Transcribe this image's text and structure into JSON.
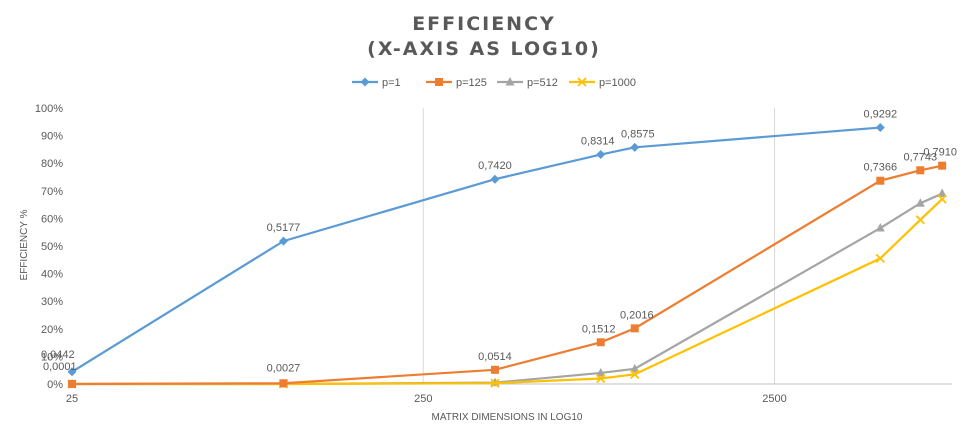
{
  "chart_data": {
    "type": "line",
    "title_line1": "EFFICIENCY",
    "title_line2": "(X-AXIS AS LOG10)",
    "xlabel": "MATRIX DIMENSIONS IN LOG10",
    "ylabel": "EFFICIENCY %",
    "x_scale": "log10",
    "xlim": [
      25,
      8000
    ],
    "ylim": [
      0,
      1
    ],
    "x_ticks": [
      25,
      250,
      2500
    ],
    "x_tick_labels": [
      "25",
      "250",
      "2500"
    ],
    "y_ticks": [
      0,
      0.1,
      0.2,
      0.3,
      0.4,
      0.5,
      0.6,
      0.7,
      0.8,
      0.9,
      1.0
    ],
    "y_tick_labels": [
      "0%",
      "10%",
      "20%",
      "30%",
      "40%",
      "50%",
      "60%",
      "70%",
      "80%",
      "90%",
      "100%"
    ],
    "grid": "vertical",
    "legend_position": "top",
    "series": [
      {
        "name": "p=1",
        "color": "#5B9BD5",
        "marker": "diamond",
        "x": [
          25,
          100,
          400,
          800,
          1000,
          5000,
          7500
        ],
        "y": [
          0.0442,
          0.5177,
          0.742,
          0.8314,
          0.8575,
          0.9292,
          null
        ],
        "labels": [
          "0,0442",
          "0,5177",
          "0,7420",
          "0,8314",
          "0,8575",
          "0,9292",
          ""
        ]
      },
      {
        "name": "p=125",
        "color": "#ED7D31",
        "marker": "square",
        "x": [
          25,
          100,
          400,
          800,
          1000,
          5000,
          6500,
          7500
        ],
        "y": [
          0.0001,
          0.0027,
          0.0514,
          0.1512,
          0.2016,
          0.7366,
          0.7743,
          0.791
        ],
        "labels": [
          "0,0001",
          "0,0027",
          "0,0514",
          "0,1512",
          "0,2016",
          "0,7366",
          "0,7743",
          "0,7910"
        ]
      },
      {
        "name": "p=512",
        "color": "#A5A5A5",
        "marker": "triangle",
        "x": [
          25,
          100,
          400,
          800,
          1000,
          5000,
          6500,
          7500
        ],
        "y": [
          0.0001,
          0.0001,
          0.005,
          0.04,
          0.055,
          0.565,
          0.655,
          0.69
        ],
        "labels": []
      },
      {
        "name": "p=1000",
        "color": "#FFC000",
        "marker": "x",
        "x": [
          25,
          100,
          400,
          800,
          1000,
          5000,
          6500,
          7500
        ],
        "y": [
          0.0001,
          0.0001,
          0.003,
          0.02,
          0.035,
          0.455,
          0.595,
          0.67
        ],
        "labels": []
      }
    ]
  }
}
